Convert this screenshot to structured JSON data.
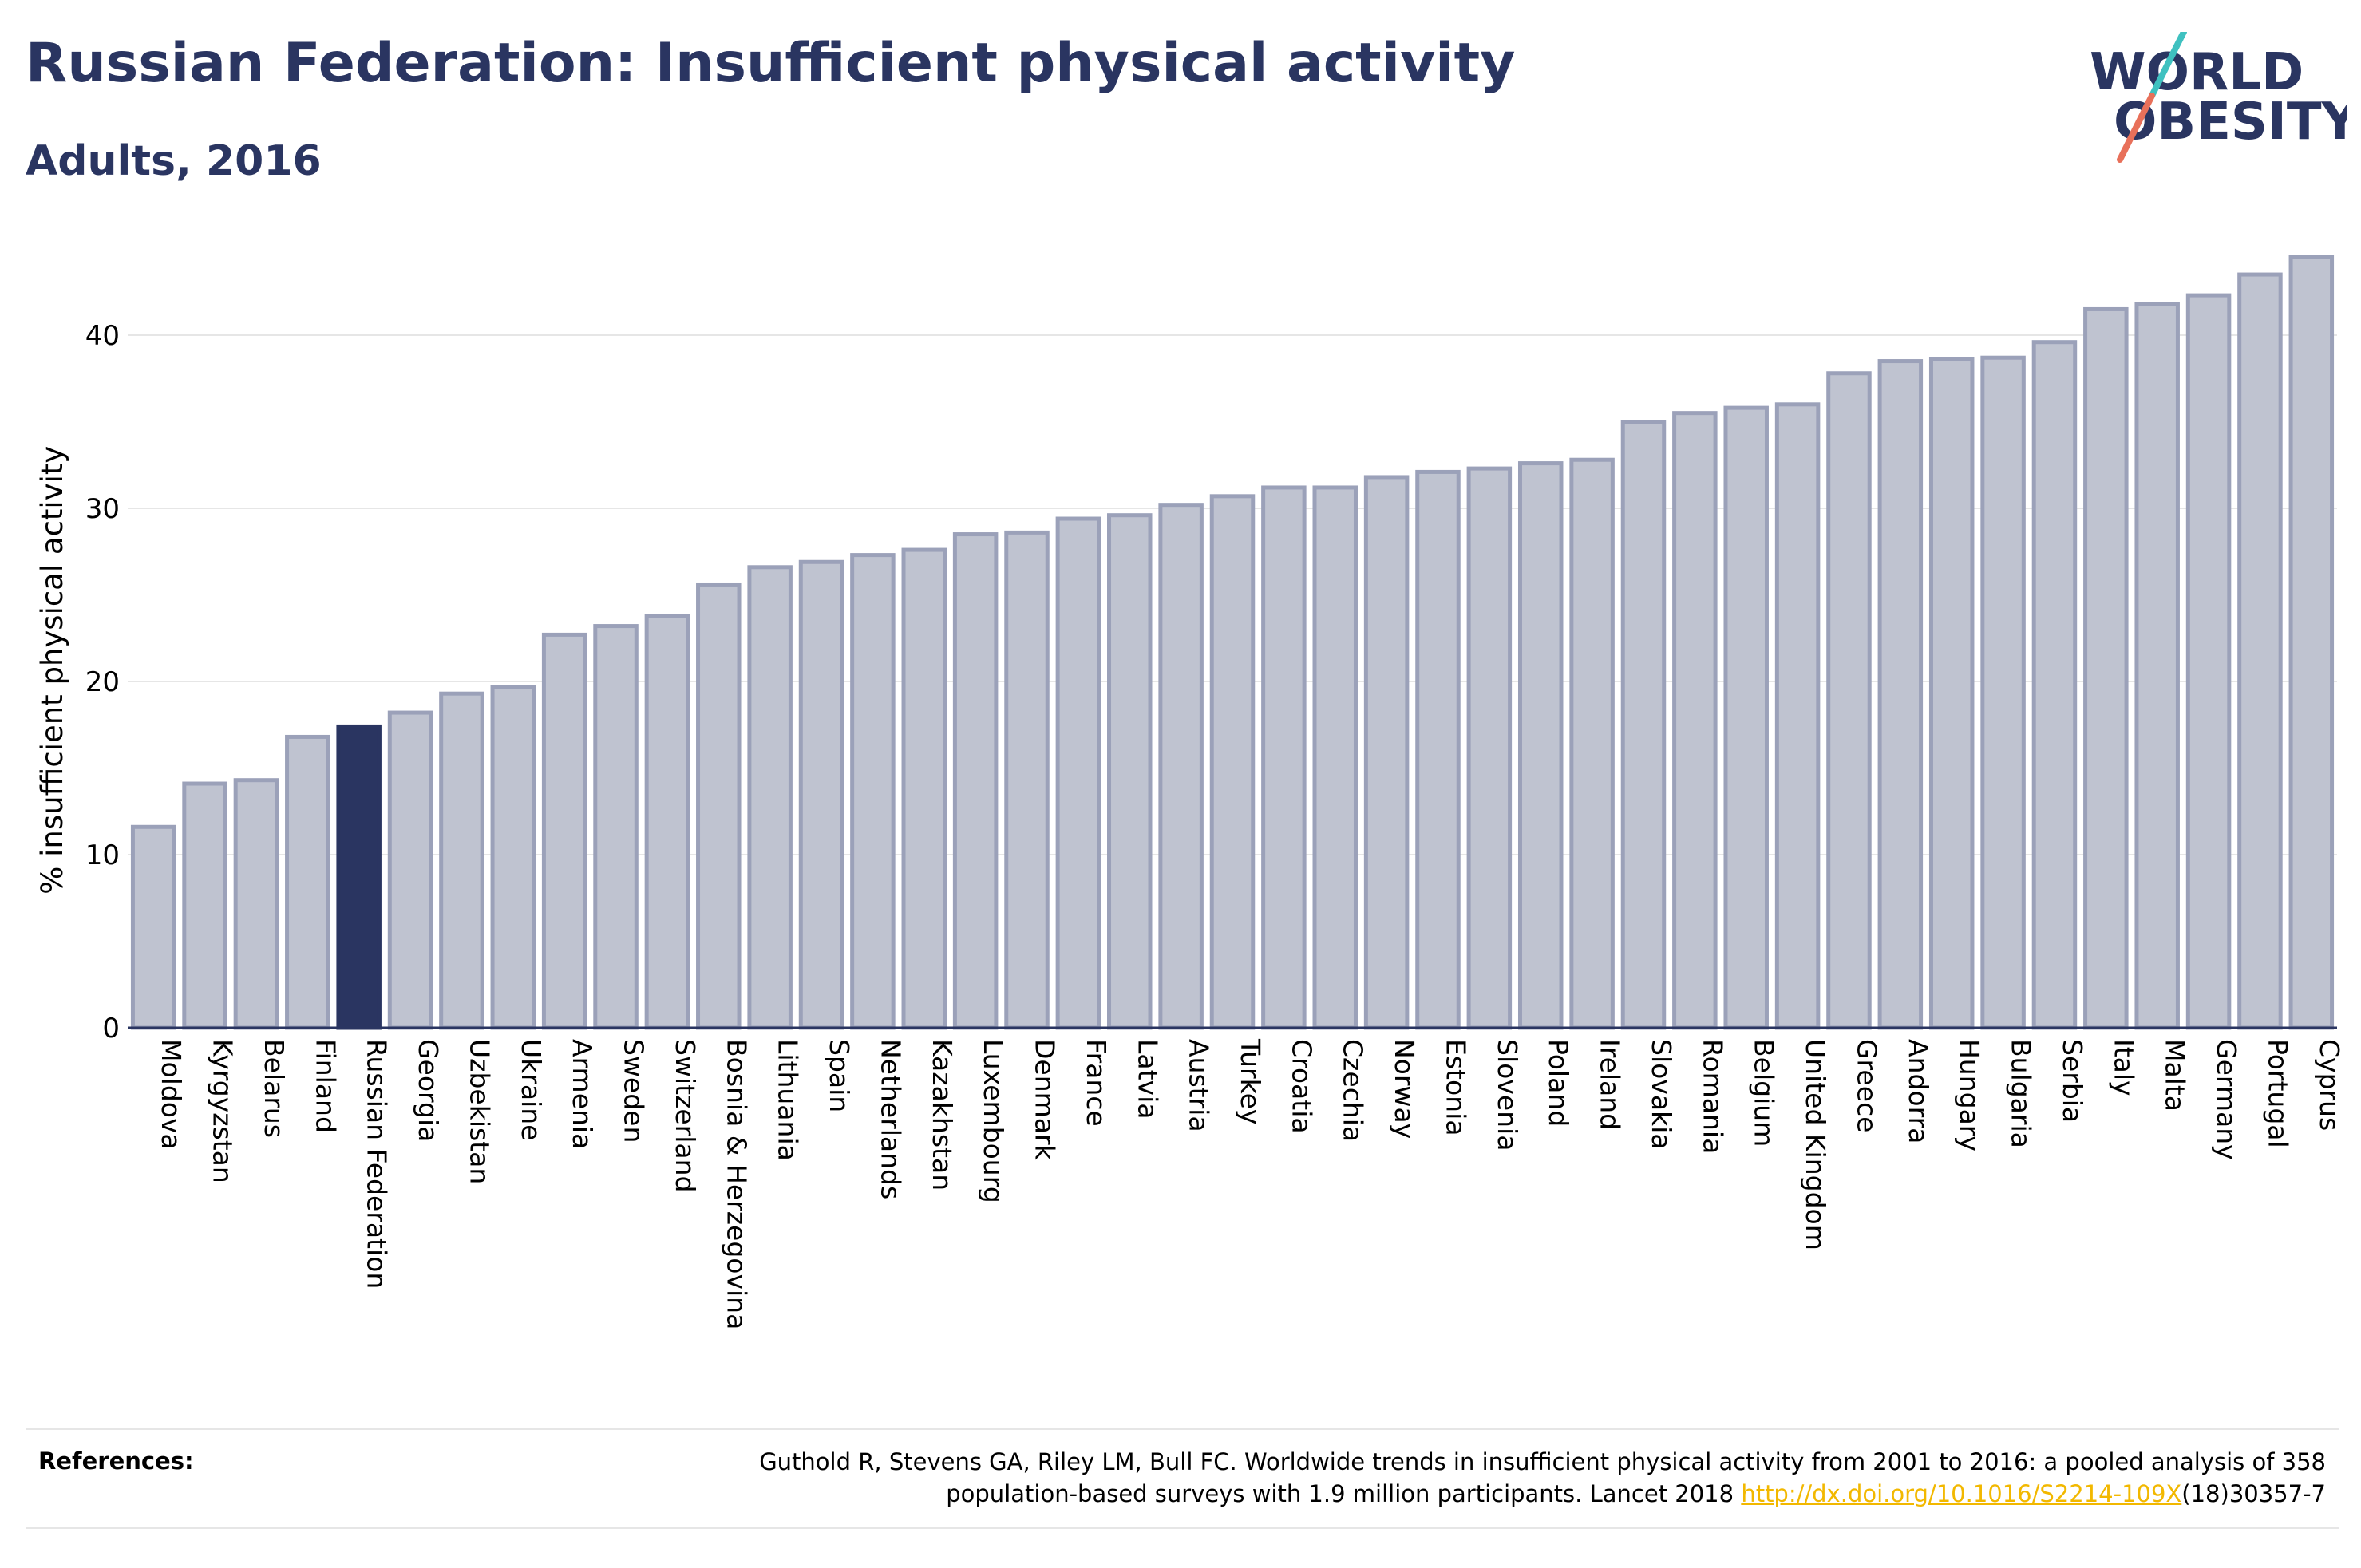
{
  "header": {
    "title": "Russian Federation: Insufficient physical activity",
    "subtitle": "Adults, 2016"
  },
  "logo": {
    "line1": "WORLD",
    "line2": "OBESITY",
    "text_color": "#2a3561",
    "slash_colors": [
      "#3fc1c0",
      "#e8705a"
    ]
  },
  "colors": {
    "bar_fill": "#bfc3d0",
    "bar_stroke": "#9ba1b9",
    "highlight_fill": "#2a3561",
    "grid": "#e6e6e6",
    "axis": "#2a3561"
  },
  "chart_data": {
    "type": "bar",
    "ylabel": "% insufficient physical activity",
    "ylim": [
      0,
      45
    ],
    "yticks": [
      0,
      10,
      20,
      30,
      40
    ],
    "grid": true,
    "highlight": "Russian Federation",
    "categories": [
      "Moldova",
      "Kyrgyzstan",
      "Belarus",
      "Finland",
      "Russian Federation",
      "Georgia",
      "Uzbekistan",
      "Ukraine",
      "Armenia",
      "Sweden",
      "Switzerland",
      "Bosnia & Herzegovina",
      "Lithuania",
      "Spain",
      "Netherlands",
      "Kazakhstan",
      "Luxembourg",
      "Denmark",
      "France",
      "Latvia",
      "Austria",
      "Turkey",
      "Croatia",
      "Czechia",
      "Norway",
      "Estonia",
      "Slovenia",
      "Poland",
      "Ireland",
      "Slovakia",
      "Romania",
      "Belgium",
      "United Kingdom",
      "Greece",
      "Andorra",
      "Hungary",
      "Bulgaria",
      "Serbia",
      "Italy",
      "Malta",
      "Germany",
      "Portugal",
      "Cyprus"
    ],
    "values": [
      11.6,
      14.1,
      14.3,
      16.8,
      17.4,
      18.2,
      19.3,
      19.7,
      22.7,
      23.2,
      23.8,
      25.6,
      26.6,
      26.9,
      27.3,
      27.6,
      28.5,
      28.6,
      29.4,
      29.6,
      30.2,
      30.7,
      31.2,
      31.2,
      31.8,
      32.1,
      32.3,
      32.6,
      32.8,
      35.0,
      35.5,
      35.8,
      36.0,
      37.8,
      38.5,
      38.6,
      38.7,
      39.6,
      41.5,
      41.8,
      42.3,
      43.5,
      44.5
    ]
  },
  "references": {
    "label": "References:",
    "text_line1": "Guthold R, Stevens GA, Riley LM, Bull FC. Worldwide trends in insufficient physical activity from 2001 to 2016: a pooled analysis of 358",
    "text_line2_pre": "population-based surveys with 1.9 million participants. Lancet 2018 ",
    "link": "http://dx.doi.org/10.1016/S2214-109X",
    "text_line2_post": "(18)30357-7"
  }
}
